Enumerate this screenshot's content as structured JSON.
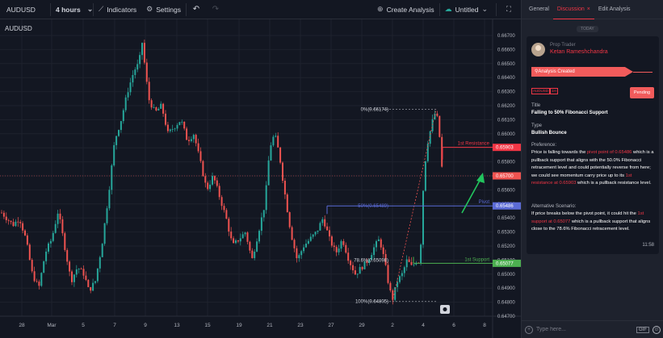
{
  "toolbar": {
    "symbol": "AUDUSD",
    "interval": "4 hours",
    "interval_icon": "chevron-down-icon",
    "indicators_label": "Indicators",
    "settings_label": "Settings",
    "create_analysis_label": "Create Analysis",
    "untitled_label": "Untitled"
  },
  "chart": {
    "symbol_label": "AUDUSD",
    "price_ticks": [
      "0.66700",
      "0.66600",
      "0.66500",
      "0.66400",
      "0.66300",
      "0.66200",
      "0.66100",
      "0.66000",
      "0.65900",
      "0.65800",
      "0.65700",
      "0.65600",
      "0.65500",
      "0.65400",
      "0.65300",
      "0.65200",
      "0.65100",
      "0.65000",
      "0.64900",
      "0.64800",
      "0.64700"
    ],
    "date_ticks": [
      "28",
      "Mar",
      "5",
      "7",
      "9",
      "13",
      "15",
      "19",
      "21",
      "23",
      "27",
      "29",
      "2",
      "4",
      "6",
      "8"
    ],
    "price_labels": {
      "resistance": "0.65903",
      "current": "0.65700",
      "pivot": "0.65486",
      "support": "0.65077"
    },
    "annotations": {
      "fib_0": "0%(0.66174)",
      "fib_50": "50%(0.65489)",
      "fib_786": "78.6%(0.65098)",
      "fib_100": "100%(0.64805)",
      "resistance_label": "1st Resistance",
      "pivot_label": "Pivot",
      "support_label": "1st Support"
    },
    "colors": {
      "up": "#26a69a",
      "down": "#ef5350",
      "pivot": "#5b6bd6",
      "support": "#4caf50",
      "resistance": "#f23645",
      "arrow": "#22c55e"
    }
  },
  "panel": {
    "tabs": [
      {
        "label": "General"
      },
      {
        "label": "Discussion"
      },
      {
        "label": "Edit Analysis"
      }
    ],
    "close_glyph": "×",
    "today_label": "TODAY",
    "author_role": "Prop Trader",
    "author_name": "Ketan Rameshchandra",
    "analysis_banner": "Analysis Created",
    "tags": [
      "AUDUSD",
      "1H"
    ],
    "status": "Pending",
    "title_label": "Title",
    "title_value": "Falling to 50% Fibonacci Support",
    "type_label": "Type",
    "type_value": "Bullish Bounce",
    "preference_label": "Preference:",
    "pref": {
      "t1": "Price is falling towards the ",
      "h1": "pivot point of 0.65486",
      "t2": " which is a pullback support that aligns with the 50.0% Fibonacci retracement level and could potentially reverse from here; we could see momentum carry price up to its ",
      "h2": "1st resistance at 0.65903",
      "t3": " which is a pullback resistance level."
    },
    "alternative_label": "Alternative Scenario:",
    "alt": {
      "t1": "If price breaks below the pivot point, it could hit the ",
      "h1": "1st support at 0.65077",
      "t2": " which is a pullback support that aligns close to the 78.6% Fibonacci retracement level."
    },
    "time": "11:58",
    "composer_placeholder": "Type here...",
    "gif_label": "GIF"
  }
}
